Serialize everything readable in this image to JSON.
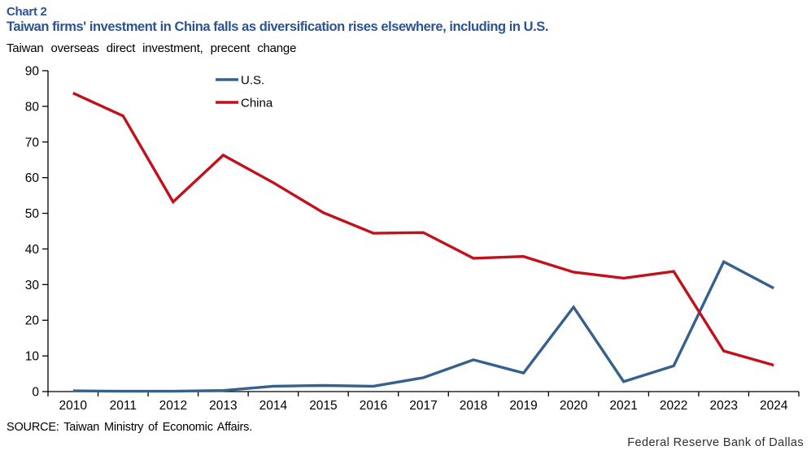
{
  "header": {
    "chart_label": "Chart 2",
    "title": "Taiwan firms' investment in China falls as diversification rises elsewhere, including in U.S.",
    "subtitle": "Taiwan overseas direct investment, precent change"
  },
  "chart_data": {
    "type": "line",
    "x": [
      "2010",
      "2011",
      "2012",
      "2013",
      "2014",
      "2015",
      "2016",
      "2017",
      "2018",
      "2019",
      "2020",
      "2021",
      "2022",
      "2023",
      "2024"
    ],
    "series": [
      {
        "name": "U.S.",
        "color": "#35618C",
        "values": [
          0.2,
          0.1,
          0.1,
          0.3,
          1.5,
          1.7,
          1.5,
          3.9,
          8.9,
          5.2,
          23.7,
          2.8,
          7.2,
          36.4,
          29.0
        ]
      },
      {
        "name": "China",
        "color": "#C3111C",
        "values": [
          83.7,
          77.3,
          53.2,
          66.3,
          58.6,
          50.2,
          44.4,
          44.6,
          37.4,
          37.9,
          33.5,
          31.8,
          33.7,
          11.4,
          7.4
        ]
      }
    ],
    "title": "Taiwan firms' investment in China falls as diversification rises elsewhere, including in U.S.",
    "xlabel": "",
    "ylabel": "Taiwan overseas direct investment, precent change",
    "ylim": [
      0,
      90
    ],
    "ytick_step": 10,
    "grid": false,
    "legend_position": "top-inside-left"
  },
  "footer": {
    "source": "SOURCE: Taiwan Ministry of Economic Affairs.",
    "attribution": "Federal Reserve Bank of Dallas"
  },
  "colors": {
    "title": "#2B5494",
    "axis": "#000000",
    "us_line": "#35618C",
    "china_line": "#C3111C"
  }
}
